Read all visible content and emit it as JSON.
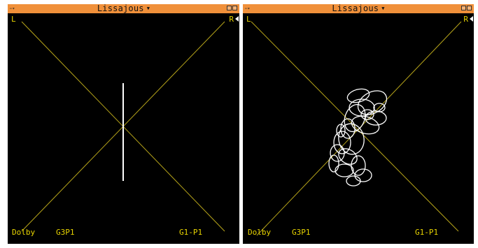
{
  "panels": [
    {
      "title": "Lissajous",
      "menu_label": "⋯▾",
      "channel_left": "L",
      "channel_right": "R",
      "mode": "Dolby",
      "source": "G3P1",
      "output": "G1-P1",
      "trace": "mono-vertical-line"
    },
    {
      "title": "Lissajous",
      "menu_label": "⋯▾",
      "channel_left": "L",
      "channel_right": "R",
      "mode": "Dolby",
      "source": "G3P1",
      "output": "G1-P1",
      "trace": "stereo-cloud"
    }
  ],
  "colors": {
    "titlebar": "#f0903a",
    "background": "#000000",
    "axes": "#b7a51a",
    "labels": "#e8d400",
    "trace": "#ffffff"
  }
}
